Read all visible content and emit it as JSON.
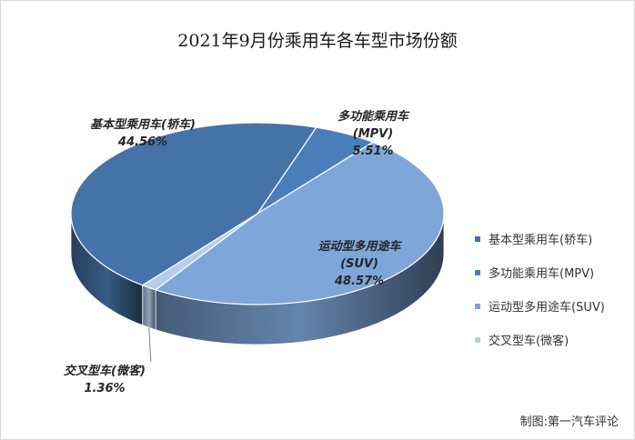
{
  "chart_data": {
    "type": "pie",
    "title": "2021年9月份乘用车各车型市场份额",
    "slices": [
      {
        "label": "基本型乘用车(轿车)",
        "label_lines": [
          "基本型乘用车(轿车)"
        ],
        "value_text": "44.56%",
        "value": 44.56,
        "color": "#4573A7"
      },
      {
        "label": "多功能乘用车(MPV)",
        "label_lines": [
          "多功能乘用车",
          "(MPV)"
        ],
        "value_text": "5.51%",
        "value": 5.51,
        "color": "#4A7EBB"
      },
      {
        "label": "运动型多用途车(SUV)",
        "label_lines": [
          "运动型多用途车",
          "(SUV)"
        ],
        "value_text": "48.57%",
        "value": 48.57,
        "color": "#7EA6D9"
      },
      {
        "label": "交叉型车(微客)",
        "label_lines": [
          "交叉型车(微客)"
        ],
        "value_text": "1.36%",
        "value": 1.36,
        "color": "#B3CDEA"
      }
    ],
    "legend_position": "right"
  },
  "credit": "制图:第一汽车评论"
}
